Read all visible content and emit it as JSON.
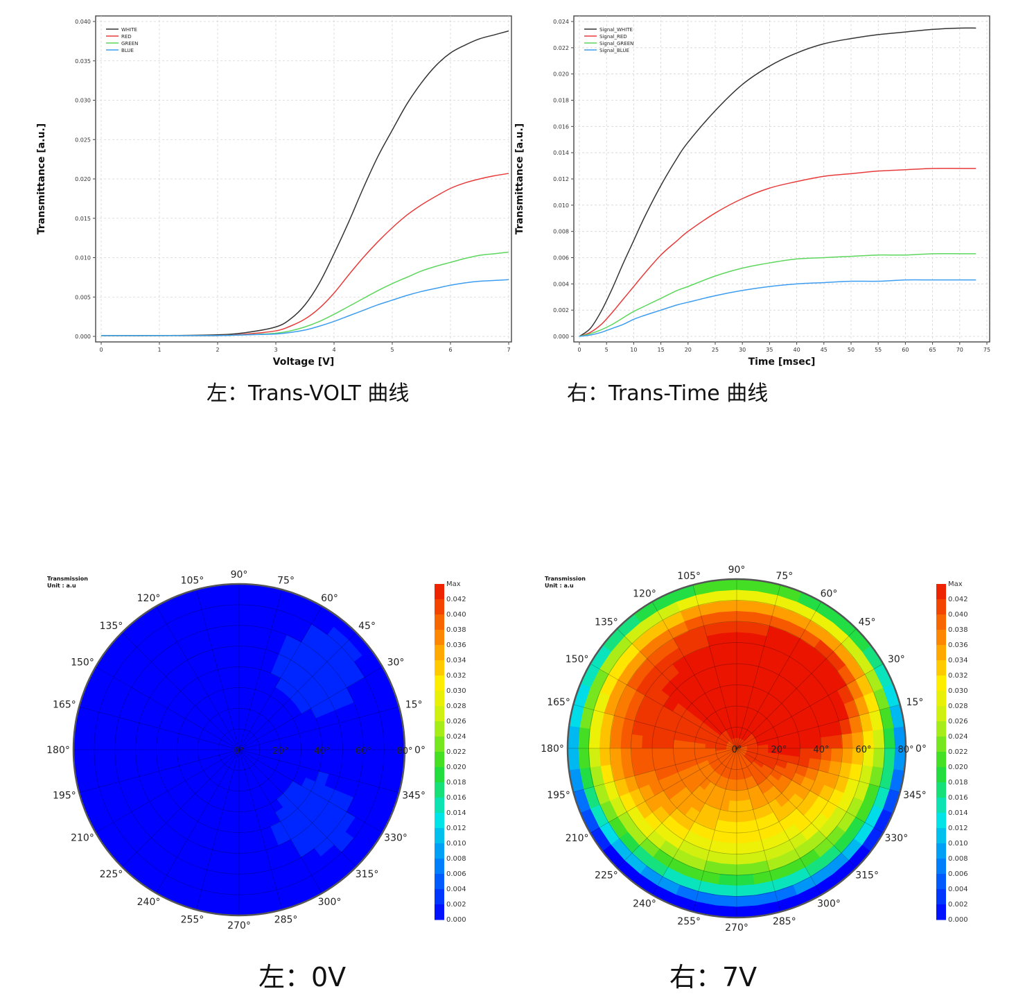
{
  "captions": {
    "top_left": "左：Trans-VOLT 曲线",
    "top_right": "右：Trans-Time 曲线",
    "bottom_left": "左：0V",
    "bottom_right": "右：7V"
  },
  "chart_data": [
    {
      "type": "line",
      "xlabel": "Voltage [V]",
      "ylabel": "Transmittance [a.u.]",
      "xlim": [
        0,
        7
      ],
      "ylim": [
        0,
        0.04
      ],
      "xticks": [
        "0",
        "1",
        "2",
        "3",
        "4",
        "5",
        "6",
        "7"
      ],
      "yticks": [
        "0.000",
        "0.005",
        "0.010",
        "0.015",
        "0.020",
        "0.025",
        "0.030",
        "0.035",
        "0.040"
      ],
      "grid": true,
      "legend_position": "top-left",
      "x": [
        0,
        1,
        2,
        2.5,
        3,
        3.25,
        3.5,
        3.75,
        4,
        4.25,
        4.5,
        4.75,
        5,
        5.25,
        5.5,
        5.75,
        6,
        6.25,
        6.5,
        6.75,
        7
      ],
      "series": [
        {
          "name": "WHITE",
          "color": "#333333",
          "values": [
            0.0001,
            0.0001,
            0.0002,
            0.0005,
            0.0012,
            0.0022,
            0.004,
            0.0068,
            0.0105,
            0.0145,
            0.0188,
            0.0228,
            0.0262,
            0.0295,
            0.0322,
            0.0344,
            0.036,
            0.037,
            0.0378,
            0.0383,
            0.0388
          ]
        },
        {
          "name": "RED",
          "color": "#e83a3a",
          "values": [
            0.0001,
            0.0001,
            0.0001,
            0.0003,
            0.0007,
            0.0013,
            0.0022,
            0.0036,
            0.0055,
            0.0078,
            0.01,
            0.012,
            0.0138,
            0.0154,
            0.0167,
            0.0178,
            0.0188,
            0.0195,
            0.02,
            0.0204,
            0.0207
          ]
        },
        {
          "name": "GREEN",
          "color": "#5cd65c",
          "values": [
            0.0001,
            0.0001,
            0.0001,
            0.0002,
            0.0004,
            0.0007,
            0.0012,
            0.0019,
            0.0028,
            0.0038,
            0.0048,
            0.0058,
            0.0067,
            0.0075,
            0.0083,
            0.0089,
            0.0094,
            0.0099,
            0.0103,
            0.0105,
            0.0107
          ]
        },
        {
          "name": "BLUE",
          "color": "#3c9cf0",
          "values": [
            0.0001,
            0.0001,
            0.0001,
            0.0002,
            0.0003,
            0.0005,
            0.0008,
            0.0013,
            0.0019,
            0.0026,
            0.0033,
            0.004,
            0.0046,
            0.0052,
            0.0057,
            0.0061,
            0.0065,
            0.0068,
            0.007,
            0.0071,
            0.0072
          ]
        }
      ]
    },
    {
      "type": "line",
      "xlabel": "Time [msec]",
      "ylabel": "Transmittance [a.u.]",
      "xlim": [
        0,
        75
      ],
      "ylim": [
        0,
        0.024
      ],
      "xticks": [
        "0",
        "5",
        "10",
        "15",
        "20",
        "25",
        "30",
        "35",
        "40",
        "45",
        "50",
        "55",
        "60",
        "65",
        "70",
        "75"
      ],
      "yticks": [
        "0.000",
        "0.002",
        "0.004",
        "0.006",
        "0.008",
        "0.010",
        "0.012",
        "0.014",
        "0.016",
        "0.018",
        "0.020",
        "0.022",
        "0.024"
      ],
      "grid": true,
      "legend_position": "top-left",
      "x": [
        0,
        2,
        4,
        6,
        8,
        10,
        12,
        15,
        18,
        20,
        25,
        30,
        35,
        40,
        45,
        50,
        55,
        60,
        65,
        70,
        73
      ],
      "series": [
        {
          "name": "Signal_WHITE",
          "color": "#333333",
          "values": [
            0.0,
            0.0006,
            0.0019,
            0.0036,
            0.0055,
            0.0073,
            0.0091,
            0.0115,
            0.0136,
            0.0148,
            0.0172,
            0.0192,
            0.0206,
            0.0216,
            0.0223,
            0.0227,
            0.023,
            0.0232,
            0.0234,
            0.0235,
            0.0235
          ]
        },
        {
          "name": "Signal_RED",
          "color": "#e83a3a",
          "values": [
            0.0,
            0.0003,
            0.0009,
            0.0018,
            0.0028,
            0.0038,
            0.0048,
            0.0062,
            0.0073,
            0.008,
            0.0094,
            0.0105,
            0.0113,
            0.0118,
            0.0122,
            0.0124,
            0.0126,
            0.0127,
            0.0128,
            0.0128,
            0.0128
          ]
        },
        {
          "name": "Signal_GREEN",
          "color": "#5cd65c",
          "values": [
            0.0,
            0.0002,
            0.0005,
            0.0009,
            0.0014,
            0.0019,
            0.0023,
            0.0029,
            0.0035,
            0.0038,
            0.0046,
            0.0052,
            0.0056,
            0.0059,
            0.006,
            0.0061,
            0.0062,
            0.0062,
            0.0063,
            0.0063,
            0.0063
          ]
        },
        {
          "name": "Signal_BLUE",
          "color": "#3c9cf0",
          "values": [
            0.0,
            0.0001,
            0.0003,
            0.0006,
            0.0009,
            0.0013,
            0.0016,
            0.002,
            0.0024,
            0.0026,
            0.0031,
            0.0035,
            0.0038,
            0.004,
            0.0041,
            0.0042,
            0.0042,
            0.0043,
            0.0043,
            0.0043,
            0.0043
          ]
        }
      ]
    },
    {
      "type": "heatmap",
      "subtype": "polar-contour",
      "header": [
        "Transmission",
        "Unit : a.u"
      ],
      "angle_labels": [
        "0°",
        "15°",
        "30°",
        "45°",
        "60°",
        "75°",
        "90°",
        "105°",
        "120°",
        "135°",
        "150°",
        "165°",
        "180°",
        "195°",
        "210°",
        "225°",
        "240°",
        "255°",
        "270°",
        "285°",
        "300°",
        "315°",
        "330°",
        "345°"
      ],
      "radial_labels": [
        "0°",
        "20°",
        "40°",
        "60°",
        "80°"
      ],
      "colorbar_labels": [
        "Max",
        "0.042",
        "0.040",
        "0.038",
        "0.036",
        "0.034",
        "0.032",
        "0.030",
        "0.028",
        "0.026",
        "0.024",
        "0.022",
        "0.020",
        "0.018",
        "0.016",
        "0.014",
        "0.012",
        "0.010",
        "0.008",
        "0.006",
        "0.004",
        "0.002",
        "0.000"
      ],
      "value_range": [
        0,
        0.042
      ],
      "field": {
        "base": 0.0002,
        "lobes": [
          {
            "theta": 45,
            "r": 55,
            "spread": 16,
            "peak": 0.0018
          },
          {
            "theta": 318,
            "r": 50,
            "spread": 16,
            "peak": 0.0016
          }
        ]
      }
    },
    {
      "type": "heatmap",
      "subtype": "polar-contour",
      "header": [
        "Transmission",
        "Unit : a.u"
      ],
      "angle_labels": [
        "0°",
        "15°",
        "30°",
        "45°",
        "60°",
        "75°",
        "90°",
        "105°",
        "120°",
        "135°",
        "150°",
        "165°",
        "180°",
        "195°",
        "210°",
        "225°",
        "240°",
        "255°",
        "270°",
        "285°",
        "300°",
        "315°",
        "330°",
        "345°"
      ],
      "radial_labels": [
        "0°",
        "20°",
        "40°",
        "60°",
        "80°"
      ],
      "colorbar_labels": [
        "Max",
        "0.042",
        "0.040",
        "0.038",
        "0.036",
        "0.034",
        "0.032",
        "0.030",
        "0.028",
        "0.026",
        "0.024",
        "0.022",
        "0.020",
        "0.018",
        "0.016",
        "0.014",
        "0.012",
        "0.010",
        "0.008",
        "0.006",
        "0.004",
        "0.002",
        "0.000"
      ],
      "value_range": [
        0,
        0.042
      ],
      "field": {
        "base": 0.036,
        "lobes": [
          {
            "theta": 35,
            "r": 38,
            "spread": 22,
            "peak": 0.009
          },
          {
            "theta": 185,
            "r": 50,
            "spread": 26,
            "peak": 0.004
          }
        ],
        "tilt": {
          "theta": 270,
          "amount": 0.012
        },
        "edge_falloff": 0.034
      }
    }
  ]
}
